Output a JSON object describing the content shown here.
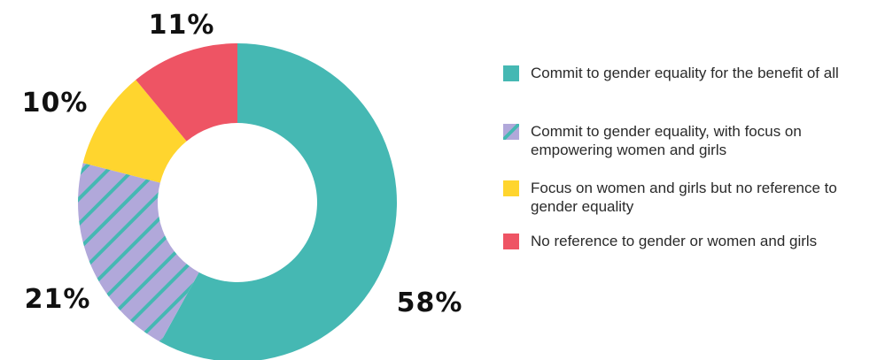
{
  "chart_data": {
    "type": "pie",
    "title": "",
    "slices": [
      {
        "label": "Commit to gender equality for the benefit of all",
        "value": 58,
        "display": "58%",
        "color": "#45B8B3",
        "pattern": "solid"
      },
      {
        "label": "Commit to gender equality, with focus on empowering women and girls",
        "value": 21,
        "display": "21%",
        "color": "#B1A8DA",
        "stripe_color": "#45B8B3",
        "pattern": "diagonal-stripes"
      },
      {
        "label": "Focus on women and girls but no reference to gender equality",
        "value": 10,
        "display": "10%",
        "color": "#FFD52E",
        "pattern": "solid"
      },
      {
        "label": "No reference to gender or women and girls",
        "value": 11,
        "display": "11%",
        "color": "#EE5464",
        "pattern": "solid"
      }
    ],
    "legend_position": "right"
  }
}
